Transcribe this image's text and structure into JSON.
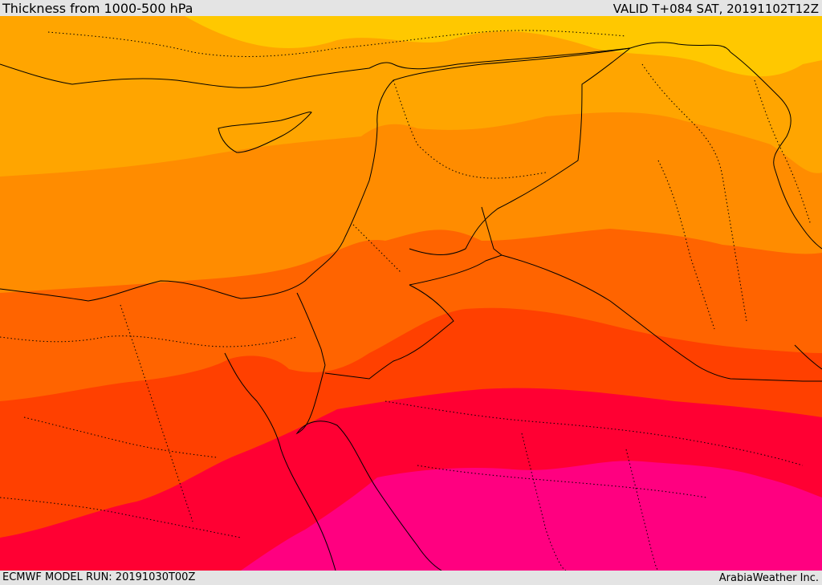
{
  "header": {
    "title": "Thickness from 1000-500 hPa",
    "valid_time": "VALID T+084 SAT, 20191102T12Z"
  },
  "footer": {
    "model_run": "ECMWF MODEL RUN: 20191030T00Z",
    "credit": "ArabiaWeather Inc."
  },
  "map": {
    "shading_bands": [
      {
        "color": "#ffc800"
      },
      {
        "color": "#ffa500"
      },
      {
        "color": "#ff8c00"
      },
      {
        "color": "#ff6400"
      },
      {
        "color": "#ff4000"
      },
      {
        "color": "#ff0033"
      },
      {
        "color": "#ff0080"
      }
    ],
    "border_color": "#000000"
  }
}
